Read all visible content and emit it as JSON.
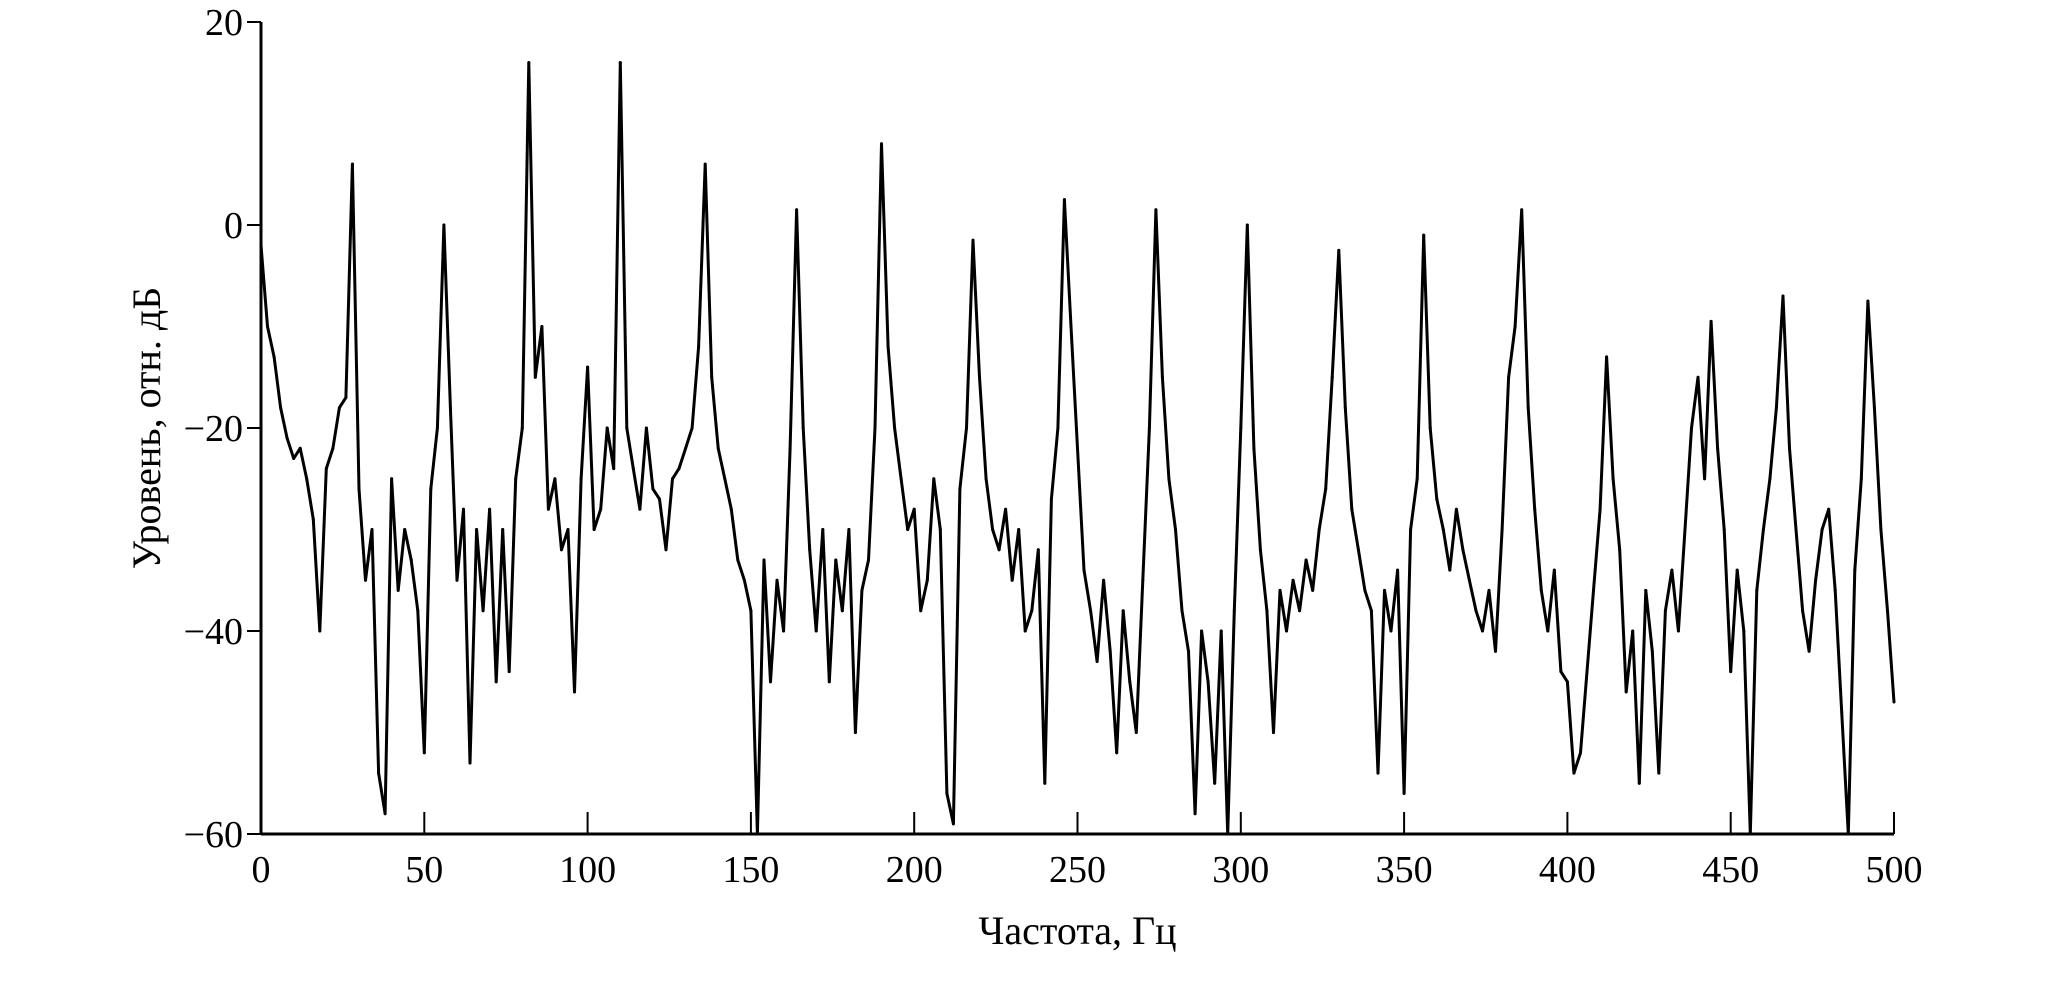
{
  "chart_data": {
    "type": "line",
    "title": "",
    "xlabel": "Частота, Гц",
    "ylabel": "Уровень, отн. дБ",
    "xlim": [
      0,
      500
    ],
    "ylim": [
      -60,
      20
    ],
    "xticks": [
      0,
      50,
      100,
      150,
      200,
      250,
      300,
      350,
      400,
      450,
      500
    ],
    "yticks": [
      20,
      0,
      -20,
      -40,
      -60
    ],
    "xtick_labels": [
      "0",
      "50",
      "100",
      "150",
      "200",
      "250",
      "300",
      "350",
      "400",
      "450",
      "500"
    ],
    "ytick_labels": [
      "20",
      "0",
      "−20",
      "−40",
      "−60"
    ],
    "grid": false,
    "line_color": "#000000",
    "series": [
      {
        "x_start": 0,
        "x_step": 2,
        "values": [
          -2,
          -10,
          -13,
          -18,
          -21,
          -23,
          -22,
          -25,
          -29,
          -40,
          -24,
          -22,
          -18,
          -17,
          6,
          -26,
          -35,
          -30,
          -54,
          -58,
          -25,
          -36,
          -30,
          -33,
          -38,
          -52,
          -26,
          -20,
          0,
          -18,
          -35,
          -28,
          -53,
          -30,
          -38,
          -28,
          -45,
          -30,
          -44,
          -25,
          -20,
          16,
          -15,
          -10,
          -28,
          -25,
          -32,
          -30,
          -46,
          -25,
          -14,
          -30,
          -28,
          -20,
          -24,
          16,
          -20,
          -24,
          -28,
          -20,
          -26,
          -27,
          -32,
          -25,
          -24,
          -22,
          -20,
          -12,
          6,
          -15,
          -22,
          -25,
          -28,
          -33,
          -35,
          -38,
          -60,
          -33,
          -45,
          -35,
          -40,
          -22,
          1.5,
          -20,
          -32,
          -40,
          -30,
          -45,
          -33,
          -38,
          -30,
          -50,
          -36,
          -33,
          -20,
          8,
          -12,
          -20,
          -25,
          -30,
          -28,
          -38,
          -35,
          -25,
          -30,
          -56,
          -59,
          -26,
          -20,
          -1.5,
          -15,
          -25,
          -30,
          -32,
          -28,
          -35,
          -30,
          -40,
          -38,
          -32,
          -55,
          -27,
          -20,
          2.5,
          -10,
          -22,
          -34,
          -38,
          -43,
          -35,
          -42,
          -52,
          -38,
          -45,
          -50,
          -35,
          -20,
          1.5,
          -15,
          -25,
          -30,
          -38,
          -42,
          -58,
          -40,
          -45,
          -55,
          -40,
          -60,
          -38,
          -20,
          0,
          -22,
          -32,
          -38,
          -50,
          -36,
          -40,
          -35,
          -38,
          -33,
          -36,
          -30,
          -26,
          -15,
          -2.5,
          -18,
          -28,
          -32,
          -36,
          -38,
          -54,
          -36,
          -40,
          -34,
          -56,
          -30,
          -25,
          -1,
          -20,
          -27,
          -30,
          -34,
          -28,
          -32,
          -35,
          -38,
          -40,
          -36,
          -42,
          -30,
          -15,
          -10,
          1.5,
          -18,
          -28,
          -36,
          -40,
          -34,
          -44,
          -45,
          -54,
          -52,
          -44,
          -36,
          -28,
          -13,
          -25,
          -32,
          -46,
          -40,
          -55,
          -36,
          -42,
          -54,
          -38,
          -34,
          -40,
          -30,
          -20,
          -15,
          -25,
          -9.5,
          -22,
          -30,
          -44,
          -34,
          -40,
          -60,
          -36,
          -30,
          -25,
          -18,
          -7,
          -22,
          -30,
          -38,
          -42,
          -35,
          -30,
          -28,
          -36,
          -48,
          -60,
          -34,
          -25,
          -7.5,
          -18,
          -30,
          -38,
          -47
        ]
      }
    ]
  }
}
